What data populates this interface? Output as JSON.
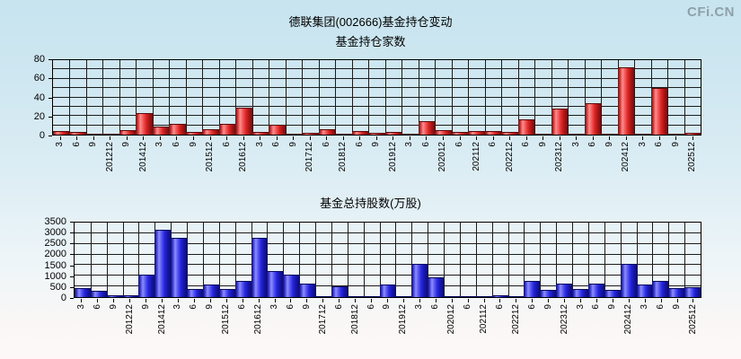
{
  "header": {
    "title": "德联集团(002666)基金持仓变动",
    "watermark": "CFi.CN"
  },
  "colors": {
    "red_bar": "#e03030",
    "blue_bar": "#3333cc",
    "background_top": "#c7e4ef",
    "background_bottom": "#fdf8f7",
    "grid": "#1c1c1c",
    "watermark_gray": "#8fa0a8"
  },
  "chart_data": [
    {
      "type": "bar",
      "title": "基金持仓家数",
      "xlabel": "",
      "ylabel": "",
      "grid": "on",
      "bar_style": "red",
      "ylim": [
        0,
        80
      ],
      "ytick_labels": [
        0,
        20,
        40,
        60,
        80
      ],
      "grid_step": 10,
      "categories": [
        "3",
        "6",
        "9",
        "201212",
        "9",
        "201412",
        "3",
        "6",
        "9",
        "201512",
        "6",
        "201612",
        "3",
        "6",
        "9",
        "201712",
        "6",
        "201812",
        "6",
        "9",
        "201912",
        "3",
        "6",
        "202012",
        "6",
        "202112",
        "6",
        "202212",
        "6",
        "9",
        "202312",
        "3",
        "6",
        "9",
        "202412",
        "3",
        "6",
        "9",
        "202512"
      ],
      "values": [
        4,
        3,
        1,
        1,
        5,
        23,
        9,
        12,
        3,
        6,
        12,
        29,
        3,
        11,
        1,
        2,
        6,
        1,
        4,
        2,
        3,
        1,
        14,
        5,
        3,
        4,
        4,
        3,
        16,
        1,
        28,
        1,
        34,
        1,
        72,
        1,
        50,
        1,
        2
      ]
    },
    {
      "type": "bar",
      "title": "基金总持股数(万股)",
      "xlabel": "",
      "ylabel": "",
      "grid": "on",
      "bar_style": "blue",
      "ylim": [
        0,
        3500
      ],
      "ytick_labels": [
        0,
        500,
        1000,
        1500,
        2000,
        2500,
        3000,
        3500
      ],
      "grid_step": 500,
      "categories": [
        "3",
        "6",
        "9",
        "201212",
        "9",
        "201412",
        "3",
        "6",
        "9",
        "201512",
        "6",
        "201612",
        "3",
        "6",
        "9",
        "201712",
        "6",
        "201812",
        "6",
        "9",
        "201912",
        "3",
        "6",
        "202012",
        "6",
        "202112",
        "6",
        "202212",
        "6",
        "9",
        "202312",
        "3",
        "6",
        "9",
        "202412",
        "3",
        "6",
        "9",
        "202512"
      ],
      "values": [
        420,
        280,
        70,
        70,
        1040,
        3180,
        2800,
        380,
        580,
        360,
        750,
        2800,
        1230,
        1040,
        650,
        30,
        500,
        20,
        20,
        570,
        20,
        1540,
        920,
        40,
        20,
        20,
        70,
        20,
        750,
        330,
        650,
        390,
        630,
        330,
        1540,
        570,
        780,
        410,
        470
      ]
    }
  ]
}
